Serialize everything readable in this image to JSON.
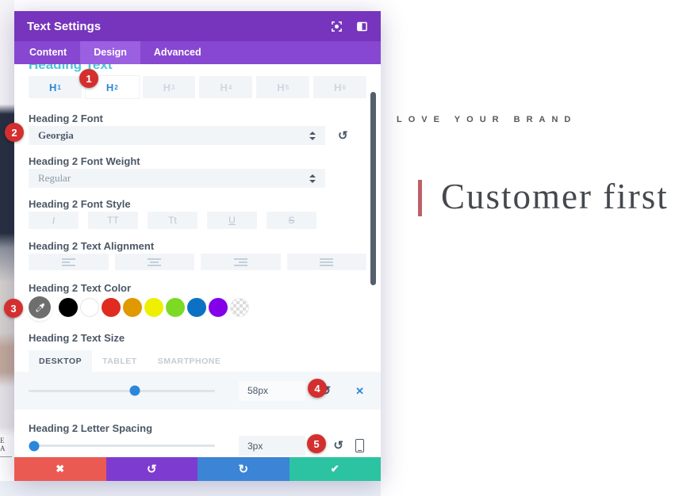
{
  "modal": {
    "title": "Text Settings",
    "tabs": [
      {
        "label": "Content"
      },
      {
        "label": "Design"
      },
      {
        "label": "Advanced"
      }
    ],
    "active_tab": "Design",
    "section_title": "Heading Text",
    "heading_tabs": [
      {
        "label": "H",
        "sub": "1"
      },
      {
        "label": "H",
        "sub": "2"
      },
      {
        "label": "H",
        "sub": "3"
      },
      {
        "label": "H",
        "sub": "4"
      },
      {
        "label": "H",
        "sub": "5"
      },
      {
        "label": "H",
        "sub": "6"
      }
    ],
    "active_heading": "H2"
  },
  "fields": {
    "font": {
      "label": "Heading 2 Font",
      "value": "Georgia"
    },
    "weight": {
      "label": "Heading 2 Font Weight",
      "value": "Regular"
    },
    "style": {
      "label": "Heading 2 Font Style",
      "options": [
        "I",
        "TT",
        "Tt",
        "U",
        "S"
      ]
    },
    "alignment": {
      "label": "Heading 2 Text Alignment",
      "options": [
        "left",
        "center",
        "right",
        "justify"
      ]
    },
    "color": {
      "label": "Heading 2 Text Color",
      "swatches": [
        "#000000",
        "#FFFFFF",
        "#E02B20",
        "#E09900",
        "#EDF000",
        "#7CDA24",
        "#0C71C3",
        "#8300E9",
        "transparent"
      ]
    },
    "size": {
      "label": "Heading 2 Text Size",
      "device_tabs": [
        "DESKTOP",
        "TABLET",
        "SMARTPHONE"
      ],
      "active_device": "DESKTOP",
      "value": "58px",
      "slider_percent": 57
    },
    "spacing": {
      "label": "Heading 2 Letter Spacing",
      "value": "3px",
      "slider_percent": 3
    }
  },
  "badges": {
    "b1": "1",
    "b2": "2",
    "b3": "3",
    "b4": "4",
    "b5": "5"
  },
  "glyphs": {
    "reset": "↺",
    "redo": "↻",
    "close_x": "✕",
    "discard": "✖",
    "check": "✔"
  },
  "canvas": {
    "tagline": "LOVE YOUR BRAND",
    "heading": "Customer first",
    "left_fragment": "E A"
  },
  "colors": {
    "header": "#7635bc",
    "tabbar": "#8747d1",
    "tab_active": "#9b5fe2",
    "accent_blue": "#2b87da",
    "badge_red": "#d42f2f",
    "footer_red": "#ea5a52",
    "footer_purple": "#7e3bd0",
    "footer_blue": "#3b84d6",
    "save_green": "#2cc3a2",
    "quote_bar": "#c05e67",
    "section_title_teal": "#4bc5d8"
  }
}
